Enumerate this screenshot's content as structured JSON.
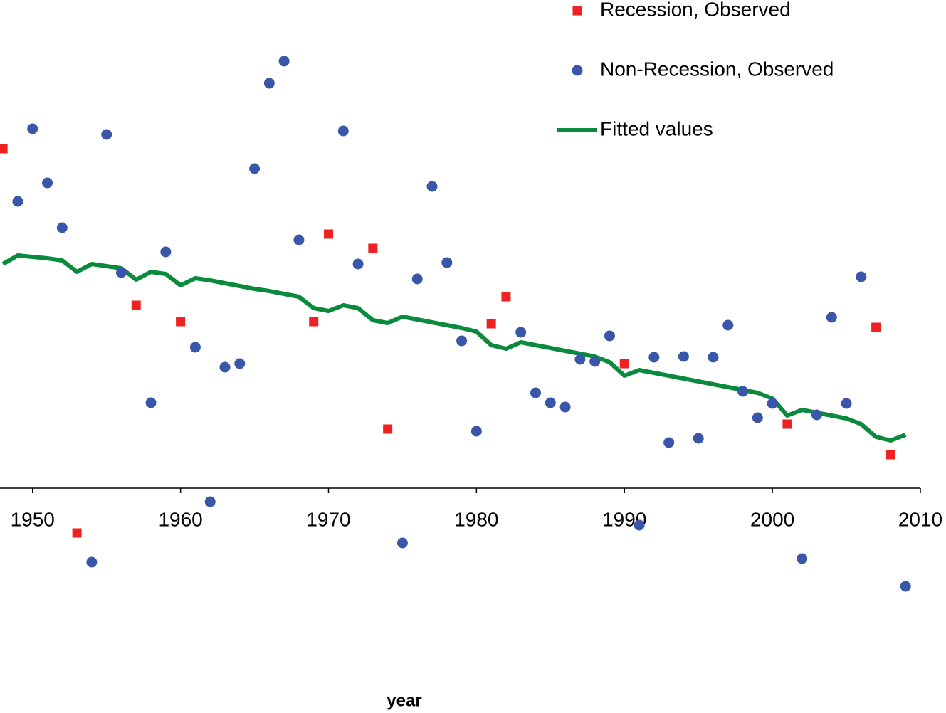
{
  "chart_data": {
    "type": "scatter",
    "xlabel": "year",
    "xlim": [
      1947.8,
      2010
    ],
    "xticks": [
      1950,
      1960,
      1970,
      1980,
      1990,
      2000,
      2010
    ],
    "ylim": [
      -2.5,
      6.86
    ],
    "legend": "top-right",
    "series": [
      {
        "name": "Recession, Observed",
        "color": "#ee2222",
        "marker": "square",
        "x": [
          1948,
          1953,
          1957,
          1960,
          1969,
          1970,
          1973,
          1974,
          1981,
          1982,
          1990,
          2001,
          2007,
          2008
        ],
        "values": [
          4.77,
          -0.63,
          2.57,
          2.34,
          2.34,
          3.57,
          3.37,
          0.83,
          2.31,
          2.69,
          1.75,
          0.9,
          2.26,
          0.47
        ]
      },
      {
        "name": "Non-Recession, Observed",
        "color": "#3a56a8",
        "marker": "circle",
        "x": [
          1949,
          1950,
          1951,
          1952,
          1954,
          1955,
          1956,
          1958,
          1959,
          1961,
          1962,
          1963,
          1964,
          1965,
          1966,
          1967,
          1968,
          1971,
          1972,
          1975,
          1976,
          1977,
          1978,
          1979,
          1980,
          1983,
          1984,
          1985,
          1986,
          1987,
          1988,
          1989,
          1991,
          1992,
          1993,
          1994,
          1995,
          1996,
          1997,
          1998,
          1999,
          2000,
          2002,
          2003,
          2004,
          2005,
          2006,
          2009
        ],
        "values": [
          4.03,
          5.05,
          4.29,
          3.66,
          -1.04,
          4.97,
          3.03,
          1.2,
          3.32,
          1.98,
          -0.19,
          1.7,
          1.75,
          4.49,
          5.69,
          6.0,
          3.49,
          5.02,
          3.15,
          -0.77,
          2.94,
          4.24,
          3.17,
          2.07,
          0.8,
          2.19,
          1.34,
          1.2,
          1.14,
          1.81,
          1.78,
          2.14,
          -0.52,
          1.84,
          0.64,
          1.85,
          0.7,
          1.84,
          2.29,
          1.36,
          0.99,
          1.19,
          -0.99,
          1.03,
          2.4,
          1.19,
          2.97,
          -1.38
        ]
      },
      {
        "name": "Fitted values",
        "color": "#0a8a3c",
        "marker": "line",
        "x": [
          1948,
          1949,
          1950,
          1951,
          1952,
          1953,
          1954,
          1955,
          1956,
          1957,
          1958,
          1959,
          1960,
          1961,
          1962,
          1963,
          1964,
          1965,
          1966,
          1967,
          1968,
          1969,
          1970,
          1971,
          1972,
          1973,
          1974,
          1975,
          1976,
          1977,
          1978,
          1979,
          1980,
          1981,
          1982,
          1983,
          1984,
          1985,
          1986,
          1987,
          1988,
          1989,
          1990,
          1991,
          1992,
          1993,
          1994,
          1995,
          1996,
          1997,
          1998,
          1999,
          2000,
          2001,
          2002,
          2003,
          2004,
          2005,
          2006,
          2007,
          2008,
          2009
        ],
        "values": [
          3.15,
          3.27,
          3.25,
          3.23,
          3.2,
          3.04,
          3.15,
          3.12,
          3.09,
          2.93,
          3.04,
          3.01,
          2.85,
          2.95,
          2.92,
          2.88,
          2.84,
          2.8,
          2.77,
          2.73,
          2.69,
          2.53,
          2.49,
          2.57,
          2.53,
          2.36,
          2.32,
          2.41,
          2.37,
          2.33,
          2.29,
          2.25,
          2.2,
          2.01,
          1.96,
          2.05,
          2.01,
          1.97,
          1.93,
          1.89,
          1.85,
          1.77,
          1.58,
          1.66,
          1.62,
          1.58,
          1.54,
          1.5,
          1.46,
          1.42,
          1.38,
          1.34,
          1.26,
          1.02,
          1.1,
          1.06,
          1.02,
          0.98,
          0.9,
          0.72,
          0.67,
          0.75
        ]
      }
    ]
  }
}
